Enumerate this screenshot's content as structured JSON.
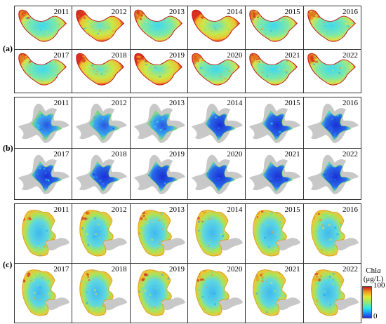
{
  "panels": [
    {
      "label": "(a)",
      "years": [
        "2011",
        "2012",
        "2013",
        "2014",
        "2015",
        "2016",
        "2017",
        "2018",
        "2019",
        "2020",
        "2021",
        "2022"
      ]
    },
    {
      "label": "(b)",
      "years": [
        "2011",
        "2012",
        "2013",
        "2014",
        "2015",
        "2016",
        "2017",
        "2018",
        "2019",
        "2020",
        "2021",
        "2022"
      ]
    },
    {
      "label": "(c)",
      "years": [
        "2011",
        "2012",
        "2013",
        "2014",
        "2015",
        "2016",
        "2017",
        "2018",
        "2019",
        "2020",
        "2021",
        "2022"
      ]
    }
  ],
  "legend": {
    "title": "Chl",
    "title_italic": "a",
    "unit": "(μg/L)",
    "max": "100",
    "min": "0"
  },
  "colors": {
    "low": "#1a2fd6",
    "mid_low": "#33e8e8",
    "mid": "#9fe866",
    "mid_high": "#e6e63a",
    "high": "#c4141c",
    "land_gray": "#c8c8c8"
  }
}
